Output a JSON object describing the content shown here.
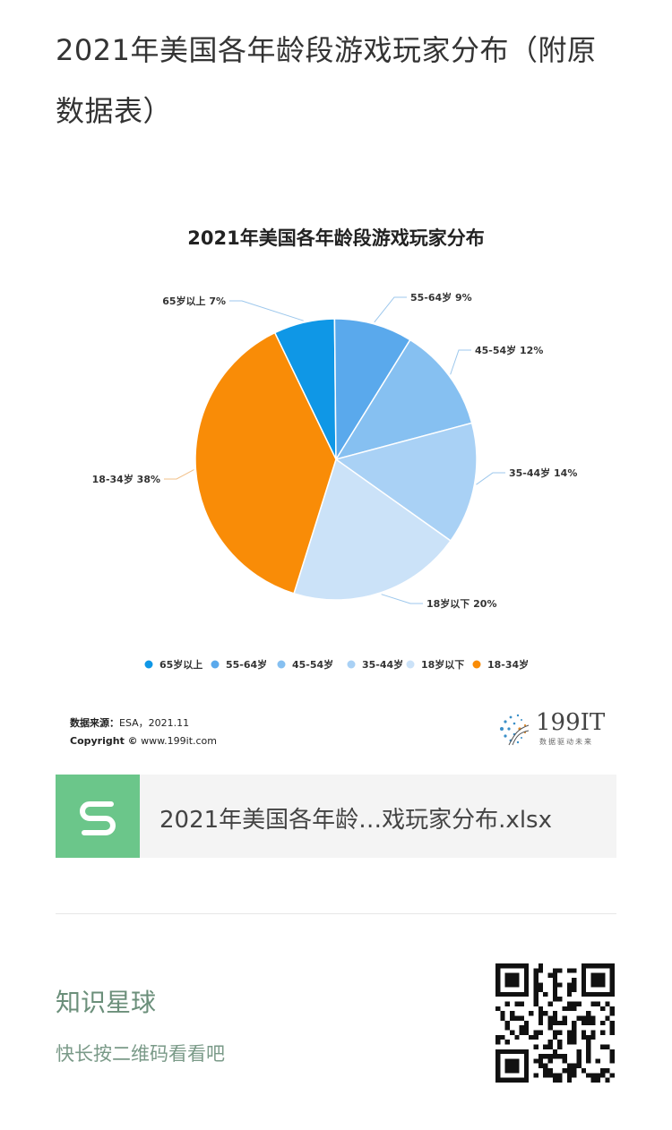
{
  "article": {
    "title": "2021年美国各年龄段游戏玩家分布（附原数据表）"
  },
  "chart_data": {
    "type": "pie",
    "title": "2021年美国各年龄段游戏玩家分布",
    "slices": [
      {
        "label": "65岁以上",
        "value": 7,
        "pct_label": "65岁以上 7%",
        "color": "#0f97e6"
      },
      {
        "label": "55-64岁",
        "value": 9,
        "pct_label": "55-64岁 9%",
        "color": "#5aa9ec"
      },
      {
        "label": "45-54岁",
        "value": 12,
        "pct_label": "45-54岁 12%",
        "color": "#86c0f1"
      },
      {
        "label": "35-44岁",
        "value": 14,
        "pct_label": "35-44岁 14%",
        "color": "#a9d1f5"
      },
      {
        "label": "18岁以下",
        "value": 20,
        "pct_label": "18岁以下 20%",
        "color": "#cbe2f8"
      },
      {
        "label": "18-34岁",
        "value": 38,
        "pct_label": "18-34岁 38%",
        "color": "#f98c07"
      }
    ],
    "legend_position": "bottom"
  },
  "source": {
    "label": "数据来源：",
    "value": "ESA，2021.11",
    "copyright_label": "Copyright ©",
    "copyright_site": "www.199it.com"
  },
  "brand": {
    "name": "199IT",
    "slogan": "数据驱动未来"
  },
  "file": {
    "name": "2021年美国各年龄…戏玩家分布.xlsx",
    "icon": "spreadsheet-s-icon"
  },
  "promo": {
    "title": "知识星球",
    "subtitle": "快长按二维码看看吧"
  },
  "icons": {
    "qr": "qr-code-icon"
  }
}
